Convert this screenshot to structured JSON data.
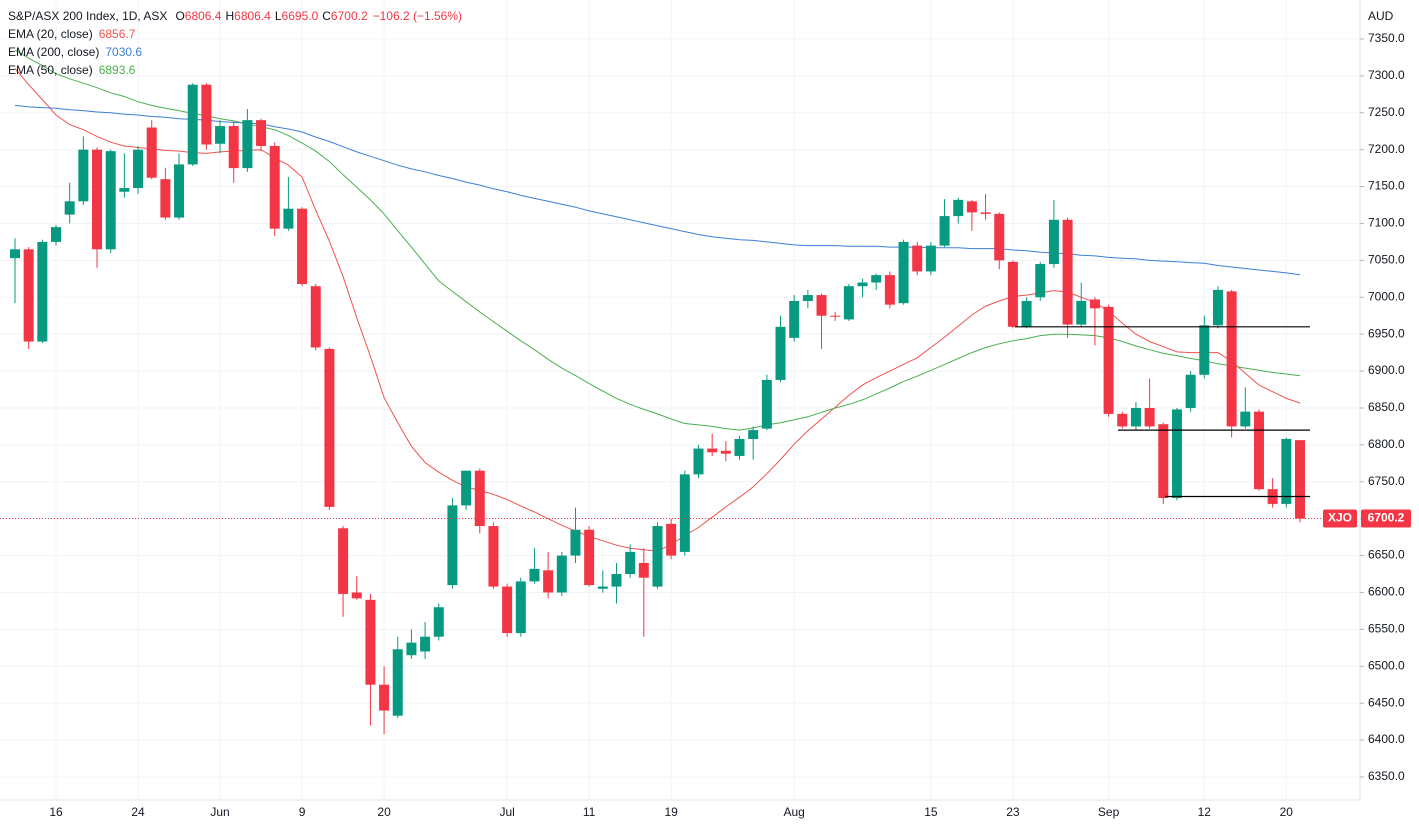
{
  "chart_data": {
    "type": "candlestick",
    "title": "S&P/ASX 200 Index, 1D, ASX",
    "ohlc_labels": [
      {
        "key": "O",
        "label": "6806.4"
      },
      {
        "key": "H",
        "label": "6806.4"
      },
      {
        "key": "L",
        "label": "6695.0"
      },
      {
        "key": "C",
        "label": "6700.2"
      }
    ],
    "change": "−106.2 (−1.56%)",
    "currency": "AUD",
    "symbol": "XJO",
    "up_color": "#089981",
    "down_color": "#f23645",
    "categories": [
      null,
      null,
      null,
      "16",
      null,
      null,
      null,
      null,
      null,
      "24",
      null,
      null,
      null,
      null,
      null,
      "Jun",
      null,
      null,
      null,
      null,
      null,
      "9",
      null,
      null,
      null,
      null,
      null,
      "20",
      null,
      null,
      null,
      null,
      null,
      null,
      null,
      null,
      "Jul",
      null,
      null,
      null,
      null,
      null,
      "11",
      null,
      null,
      null,
      null,
      null,
      "19",
      null,
      null,
      null,
      null,
      null,
      null,
      null,
      null,
      "Aug",
      null,
      null,
      null,
      null,
      null,
      null,
      null,
      null,
      null,
      "15",
      null,
      null,
      null,
      null,
      null,
      "23",
      null,
      null,
      null,
      null,
      null,
      null,
      "Sep",
      null,
      null,
      null,
      null,
      null,
      null,
      "12",
      null,
      null,
      null,
      null,
      null,
      "20",
      null
    ],
    "open": [
      7053,
      7065,
      6940,
      7075,
      7112,
      7130,
      7200,
      7065,
      7143,
      7148,
      7230,
      7160,
      7108,
      7180,
      7288,
      7208,
      7232,
      7175,
      7240,
      7205,
      7093,
      7120,
      7015,
      6930,
      6687,
      6600,
      6590,
      6475,
      6433,
      6515,
      6520,
      6540,
      6610,
      6718,
      6765,
      6690,
      6608,
      6545,
      6615,
      6630,
      6600,
      6650,
      6685,
      6605,
      6608,
      6625,
      6640,
      6608,
      6693,
      6655,
      6760,
      6795,
      6792,
      6785,
      6808,
      6822,
      6888,
      6945,
      6995,
      7003,
      6975,
      6970,
      7015,
      7020,
      7030,
      6992,
      7070,
      7035,
      7070,
      7110,
      7130,
      7115,
      7113,
      7048,
      6960,
      7000,
      7045,
      7105,
      6963,
      6997,
      6987,
      6842,
      6825,
      6850,
      6828,
      6728,
      6850,
      6895,
      6962,
      7008,
      6825,
      6845,
      6740,
      6720,
      6806.4
    ],
    "high": [
      7080,
      7068,
      7078,
      7098,
      7155,
      7218,
      7203,
      7200,
      7195,
      7205,
      7240,
      7175,
      7195,
      7290,
      7290,
      7240,
      7238,
      7255,
      7242,
      7210,
      7163,
      7122,
      7018,
      6932,
      6690,
      6622,
      6598,
      6500,
      6540,
      6550,
      6560,
      6585,
      6728,
      6765,
      6768,
      6695,
      6612,
      6620,
      6660,
      6655,
      6655,
      6715,
      6690,
      6630,
      6640,
      6665,
      6660,
      6695,
      6700,
      6765,
      6800,
      6815,
      6805,
      6812,
      6825,
      6895,
      6975,
      7003,
      7010,
      7005,
      6980,
      7018,
      7025,
      7032,
      7035,
      7078,
      7075,
      7075,
      7133,
      7135,
      7132,
      7140,
      7115,
      7050,
      7000,
      7048,
      7132,
      7108,
      7020,
      7000,
      6990,
      6845,
      6858,
      6890,
      6830,
      6850,
      6900,
      6975,
      7015,
      7010,
      6878,
      6848,
      6755,
      6810,
      6806.4
    ],
    "low": [
      6992,
      6930,
      6938,
      7070,
      7100,
      7125,
      7040,
      7060,
      7135,
      7140,
      7160,
      7105,
      7105,
      7178,
      7200,
      7195,
      7155,
      7170,
      7198,
      7083,
      7090,
      7015,
      6928,
      6712,
      6567,
      6590,
      6420,
      6408,
      6430,
      6510,
      6510,
      6535,
      6605,
      6712,
      6680,
      6605,
      6540,
      6540,
      6612,
      6592,
      6595,
      6640,
      6608,
      6600,
      6585,
      6620,
      6540,
      6605,
      6645,
      6650,
      6755,
      6785,
      6778,
      6780,
      6780,
      6820,
      6885,
      6940,
      6985,
      6930,
      6968,
      6968,
      7000,
      7010,
      6985,
      6990,
      7030,
      7030,
      7068,
      7100,
      7090,
      7105,
      7038,
      6958,
      6958,
      6995,
      7040,
      6945,
      6960,
      6935,
      6838,
      6822,
      6820,
      6822,
      6720,
      6725,
      6845,
      6890,
      6958,
      6810,
      6822,
      6738,
      6715,
      6715,
      6695
    ],
    "close": [
      7065,
      6940,
      7075,
      7095,
      7130,
      7200,
      7065,
      7198,
      7148,
      7200,
      7162,
      7108,
      7180,
      7288,
      7207,
      7232,
      7175,
      7240,
      7205,
      7093,
      7120,
      7018,
      6932,
      6716,
      6598,
      6592,
      6475,
      6440,
      6523,
      6532,
      6540,
      6580,
      6718,
      6765,
      6690,
      6608,
      6545,
      6615,
      6632,
      6600,
      6650,
      6685,
      6610,
      6608,
      6625,
      6655,
      6620,
      6690,
      6650,
      6760,
      6795,
      6790,
      6788,
      6808,
      6820,
      6888,
      6960,
      6995,
      7003,
      6975,
      6974,
      7015,
      7020,
      7030,
      6990,
      7075,
      7035,
      7070,
      7110,
      7132,
      7115,
      7113,
      7050,
      6960,
      6995,
      7045,
      7105,
      6963,
      6995,
      6985,
      6842,
      6825,
      6850,
      6825,
      6728,
      6848,
      6895,
      6962,
      7010,
      6825,
      6845,
      6740,
      6720,
      6808,
      6700.2
    ],
    "series": [
      {
        "name": "EMA (20, close)",
        "color": "#f05350",
        "values": [
          7310,
          7288,
          7268,
          7247,
          7234,
          7227,
          7218,
          7210,
          7205,
          7203,
          7201,
          7199,
          7198,
          7196,
          7195,
          7197,
          7198,
          7199,
          7200,
          7189,
          7179,
          7163,
          7118,
          7076,
          7028,
          6972,
          6920,
          6864,
          6830,
          6798,
          6776,
          6763,
          6752,
          6743,
          6738,
          6733,
          6726,
          6717,
          6709,
          6700,
          6691,
          6683,
          6676,
          6670,
          6664,
          6660,
          6658,
          6656,
          6665,
          6677,
          6688,
          6702,
          6716,
          6729,
          6743,
          6761,
          6780,
          6801,
          6819,
          6835,
          6851,
          6867,
          6881,
          6891,
          6900,
          6909,
          6918,
          6932,
          6946,
          6961,
          6976,
          6988,
          6995,
          7001,
          7003,
          7006,
          7009,
          7007,
          7000,
          6993,
          6981,
          6965,
          6950,
          6940,
          6933,
          6926,
          6925,
          6925,
          6925,
          6913,
          6897,
          6881,
          6872,
          6863,
          6856.7
        ]
      },
      {
        "name": "EMA (200, close)",
        "color": "#3d7fd6",
        "values": [
          7260,
          7258,
          7257,
          7256,
          7254,
          7253,
          7251,
          7250,
          7248,
          7247,
          7245,
          7244,
          7242,
          7241,
          7240,
          7238,
          7237,
          7236,
          7235,
          7231,
          7228,
          7224,
          7217,
          7211,
          7204,
          7197,
          7191,
          7185,
          7179,
          7174,
          7170,
          7165,
          7161,
          7156,
          7152,
          7147,
          7143,
          7138,
          7134,
          7130,
          7126,
          7122,
          7117,
          7113,
          7109,
          7105,
          7101,
          7097,
          7093,
          7089,
          7085,
          7082,
          7080,
          7078,
          7077,
          7075,
          7073,
          7071,
          7070,
          7070,
          7070,
          7069,
          7069,
          7069,
          7068,
          7068,
          7068,
          7067,
          7067,
          7067,
          7066,
          7066,
          7066,
          7064,
          7063,
          7061,
          7060,
          7059,
          7057,
          7056,
          7054,
          7053,
          7052,
          7050,
          7049,
          7048,
          7047,
          7046,
          7043,
          7041,
          7039,
          7037,
          7035,
          7033,
          7030.6
        ]
      },
      {
        "name": "EMA (50, close)",
        "color": "#4caf50",
        "values": [
          7335,
          7324,
          7314,
          7303,
          7296,
          7290,
          7284,
          7277,
          7272,
          7265,
          7260,
          7256,
          7253,
          7249,
          7246,
          7242,
          7239,
          7235,
          7231,
          7227,
          7219,
          7209,
          7198,
          7184,
          7166,
          7149,
          7132,
          7113,
          7090,
          7068,
          7045,
          7022,
          7008,
          6994,
          6980,
          6967,
          6954,
          6941,
          6929,
          6916,
          6904,
          6894,
          6883,
          6873,
          6863,
          6855,
          6848,
          6842,
          6835,
          6829,
          6827,
          6825,
          6822,
          6820,
          6823,
          6827,
          6830,
          6834,
          6838,
          6844,
          6850,
          6855,
          6861,
          6869,
          6877,
          6886,
          6893,
          6901,
          6909,
          6917,
          6925,
          6932,
          6937,
          6941,
          6944,
          6948,
          6950,
          6950,
          6949,
          6948,
          6945,
          6940,
          6934,
          6929,
          6924,
          6921,
          6917,
          6914,
          6910,
          6907,
          6904,
          6901,
          6898,
          6896,
          6893.6
        ]
      }
    ],
    "hlines": [
      6960,
      6820,
      6730
    ],
    "ylim": [
      6318.8,
      7402.8
    ],
    "yticks": [
      {
        "value": 6350,
        "label": "6350.0"
      },
      {
        "value": 6400,
        "label": "6400.0"
      },
      {
        "value": 6450,
        "label": "6450.0"
      },
      {
        "value": 6500,
        "label": "6500.0"
      },
      {
        "value": 6550,
        "label": "6550.0"
      },
      {
        "value": 6600,
        "label": "6600.0"
      },
      {
        "value": 6650,
        "label": "6650.0"
      },
      {
        "value": 6700,
        "label": "6700.0"
      },
      {
        "value": 6750,
        "label": "6750.0"
      },
      {
        "value": 6800,
        "label": "6800.0"
      },
      {
        "value": 6850,
        "label": "6850.0"
      },
      {
        "value": 6900,
        "label": "6900.0"
      },
      {
        "value": 6950,
        "label": "6950.0"
      },
      {
        "value": 7000,
        "label": "7000.0"
      },
      {
        "value": 7050,
        "label": "7050.0"
      },
      {
        "value": 7100,
        "label": "7100.0"
      },
      {
        "value": 7150,
        "label": "7150.0"
      },
      {
        "value": 7200,
        "label": "7200.0"
      },
      {
        "value": 7250,
        "label": "7250.0"
      },
      {
        "value": 7300,
        "label": "7300.0"
      },
      {
        "value": 7350,
        "label": "7350.0"
      }
    ],
    "grid": true
  }
}
